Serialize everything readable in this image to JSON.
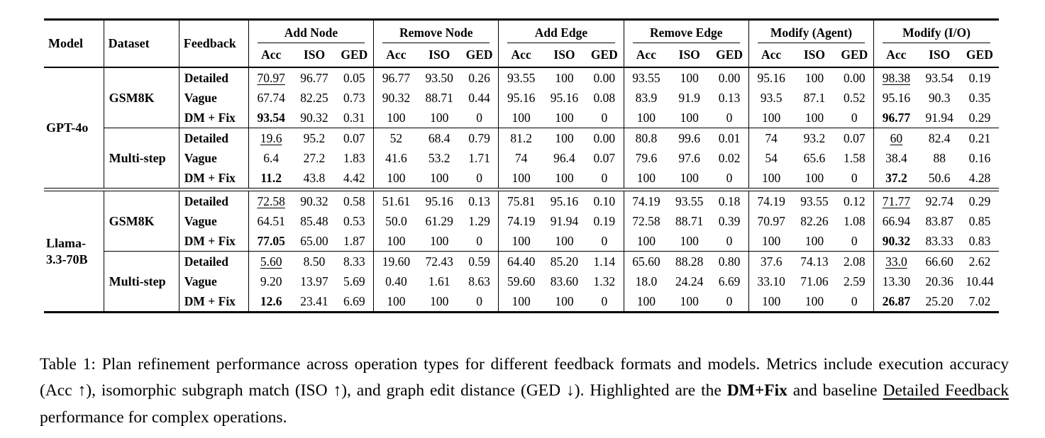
{
  "table": {
    "col_headers": [
      "Model",
      "Dataset",
      "Feedback"
    ],
    "groups": [
      "Add Node",
      "Remove Node",
      "Add Edge",
      "Remove Edge",
      "Modify (Agent)",
      "Modify (I/O)"
    ],
    "metrics": [
      "Acc",
      "ISO",
      "GED"
    ],
    "highlight_cols": [
      0,
      15
    ],
    "blocks": [
      {
        "model": "GPT-4o",
        "datasets": [
          {
            "name": "GSM8K",
            "rows": [
              {
                "feedback": "Detailed",
                "mark": "u",
                "values": [
                  "70.97",
                  "96.77",
                  "0.05",
                  "96.77",
                  "93.50",
                  "0.26",
                  "93.55",
                  "100",
                  "0.00",
                  "93.55",
                  "100",
                  "0.00",
                  "95.16",
                  "100",
                  "0.00",
                  "98.38",
                  "93.54",
                  "0.19"
                ]
              },
              {
                "feedback": "Vague",
                "mark": "",
                "values": [
                  "67.74",
                  "82.25",
                  "0.73",
                  "90.32",
                  "88.71",
                  "0.44",
                  "95.16",
                  "95.16",
                  "0.08",
                  "83.9",
                  "91.9",
                  "0.13",
                  "93.5",
                  "87.1",
                  "0.52",
                  "95.16",
                  "90.3",
                  "0.35"
                ]
              },
              {
                "feedback": "DM + Fix",
                "mark": "b",
                "values": [
                  "93.54",
                  "90.32",
                  "0.31",
                  "100",
                  "100",
                  "0",
                  "100",
                  "100",
                  "0",
                  "100",
                  "100",
                  "0",
                  "100",
                  "100",
                  "0",
                  "96.77",
                  "91.94",
                  "0.29"
                ]
              }
            ]
          },
          {
            "name": "Multi-step",
            "rows": [
              {
                "feedback": "Detailed",
                "mark": "u",
                "values": [
                  "19.6",
                  "95.2",
                  "0.07",
                  "52",
                  "68.4",
                  "0.79",
                  "81.2",
                  "100",
                  "0.00",
                  "80.8",
                  "99.6",
                  "0.01",
                  "74",
                  "93.2",
                  "0.07",
                  "60",
                  "82.4",
                  "0.21"
                ]
              },
              {
                "feedback": "Vague",
                "mark": "",
                "values": [
                  "6.4",
                  "27.2",
                  "1.83",
                  "41.6",
                  "53.2",
                  "1.71",
                  "74",
                  "96.4",
                  "0.07",
                  "79.6",
                  "97.6",
                  "0.02",
                  "54",
                  "65.6",
                  "1.58",
                  "38.4",
                  "88",
                  "0.16"
                ]
              },
              {
                "feedback": "DM + Fix",
                "mark": "b",
                "values": [
                  "11.2",
                  "43.8",
                  "4.42",
                  "100",
                  "100",
                  "0",
                  "100",
                  "100",
                  "0",
                  "100",
                  "100",
                  "0",
                  "100",
                  "100",
                  "0",
                  "37.2",
                  "50.6",
                  "4.28"
                ]
              }
            ]
          }
        ]
      },
      {
        "model": "Llama-3.3-70B",
        "datasets": [
          {
            "name": "GSM8K",
            "rows": [
              {
                "feedback": "Detailed",
                "mark": "u",
                "values": [
                  "72.58",
                  "90.32",
                  "0.58",
                  "51.61",
                  "95.16",
                  "0.13",
                  "75.81",
                  "95.16",
                  "0.10",
                  "74.19",
                  "93.55",
                  "0.18",
                  "74.19",
                  "93.55",
                  "0.12",
                  "71.77",
                  "92.74",
                  "0.29"
                ]
              },
              {
                "feedback": "Vague",
                "mark": "",
                "values": [
                  "64.51",
                  "85.48",
                  "0.53",
                  "50.0",
                  "61.29",
                  "1.29",
                  "74.19",
                  "91.94",
                  "0.19",
                  "72.58",
                  "88.71",
                  "0.39",
                  "70.97",
                  "82.26",
                  "1.08",
                  "66.94",
                  "83.87",
                  "0.85"
                ]
              },
              {
                "feedback": "DM + Fix",
                "mark": "b",
                "values": [
                  "77.05",
                  "65.00",
                  "1.87",
                  "100",
                  "100",
                  "0",
                  "100",
                  "100",
                  "0",
                  "100",
                  "100",
                  "0",
                  "100",
                  "100",
                  "0",
                  "90.32",
                  "83.33",
                  "0.83"
                ]
              }
            ]
          },
          {
            "name": "Multi-step",
            "rows": [
              {
                "feedback": "Detailed",
                "mark": "u",
                "values": [
                  "5.60",
                  "8.50",
                  "8.33",
                  "19.60",
                  "72.43",
                  "0.59",
                  "64.40",
                  "85.20",
                  "1.14",
                  "65.60",
                  "88.28",
                  "0.80",
                  "37.6",
                  "74.13",
                  "2.08",
                  "33.0",
                  "66.60",
                  "2.62"
                ]
              },
              {
                "feedback": "Vague",
                "mark": "",
                "values": [
                  "9.20",
                  "13.97",
                  "5.69",
                  "0.40",
                  "1.61",
                  "8.63",
                  "59.60",
                  "83.60",
                  "1.32",
                  "18.0",
                  "24.24",
                  "6.69",
                  "33.10",
                  "71.06",
                  "2.59",
                  "13.30",
                  "20.36",
                  "10.44"
                ]
              },
              {
                "feedback": "DM + Fix",
                "mark": "b",
                "values": [
                  "12.6",
                  "23.41",
                  "6.69",
                  "100",
                  "100",
                  "0",
                  "100",
                  "100",
                  "0",
                  "100",
                  "100",
                  "0",
                  "100",
                  "100",
                  "0",
                  "26.87",
                  "25.20",
                  "7.02"
                ]
              }
            ]
          }
        ]
      }
    ]
  },
  "caption": {
    "segments": [
      {
        "text": "Table 1: Plan refinement performance across operation types for different feedback formats and models. Metrics include execution accuracy (Acc ↑), isomorphic subgraph match (ISO ↑), and graph edit distance (GED ↓). Highlighted are the ",
        "style": "normal"
      },
      {
        "text": "DM+Fix",
        "style": "bold"
      },
      {
        "text": " and baseline ",
        "style": "normal"
      },
      {
        "text": "Detailed Feedback",
        "style": "underline"
      },
      {
        "text": " performance for complex operations.",
        "style": "normal"
      }
    ]
  }
}
